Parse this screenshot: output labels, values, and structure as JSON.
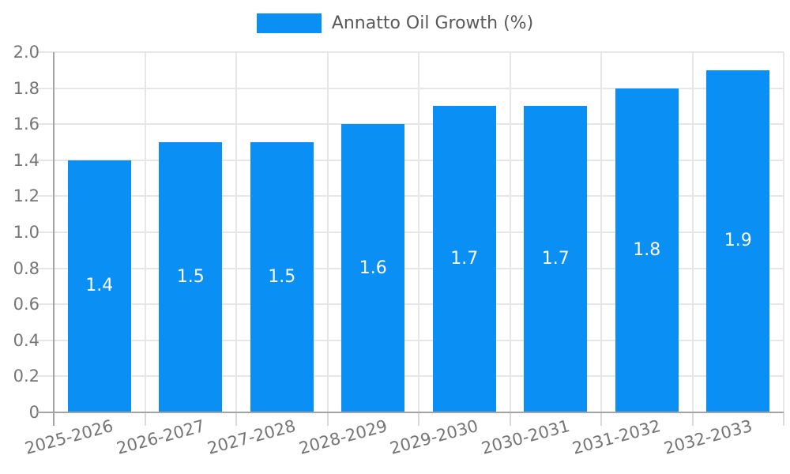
{
  "legend": {
    "label": "Annatto Oil Growth (%)"
  },
  "chart_data": {
    "type": "bar",
    "title": "",
    "xlabel": "",
    "ylabel": "",
    "legend_position": "top-center",
    "categories": [
      "2025-2026",
      "2026-2027",
      "2027-2028",
      "2028-2029",
      "2029-2030",
      "2030-2031",
      "2031-2032",
      "2032-2033"
    ],
    "series": [
      {
        "name": "Annatto Oil Growth (%)",
        "values": [
          1.4,
          1.5,
          1.5,
          1.6,
          1.7,
          1.7,
          1.8,
          1.9
        ]
      }
    ],
    "value_labels": [
      "1.4",
      "1.5",
      "1.5",
      "1.6",
      "1.7",
      "1.7",
      "1.8",
      "1.9"
    ],
    "value_label_position": "center-inside",
    "ylim": [
      0,
      2.0
    ],
    "ytick_step": 0.2,
    "ytick_labels": [
      "0",
      "0.2",
      "0.4",
      "0.6",
      "0.8",
      "1.0",
      "1.2",
      "1.4",
      "1.6",
      "1.8",
      "2.0"
    ],
    "grid": true,
    "grid_vertical_at_category_boundaries": true,
    "colors": {
      "bar": "#0a90f5",
      "grid": "#e6e6e6",
      "axis": "#a3a3a3",
      "x_tick_mark": "#d9d9d9",
      "tick_label": "#757575",
      "legend_text": "#595959",
      "value_label": "#ffffff"
    }
  }
}
